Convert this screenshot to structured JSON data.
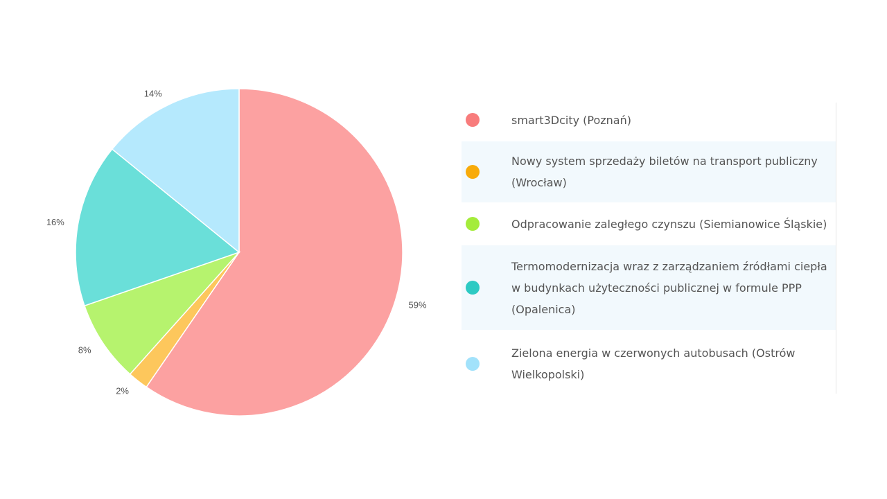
{
  "chart_data": {
    "type": "pie",
    "start_angle": "12 o'clock",
    "direction": "clockwise",
    "slices": [
      {
        "label": "smart3Dcity (Poznań)",
        "value": 59,
        "value_label": "59%",
        "color": "#fca1a1"
      },
      {
        "label": "Nowy system sprzedaży biletów na transport publiczny (Wrocław)",
        "value": 2,
        "value_label": "2%",
        "color": "#fdc75c"
      },
      {
        "label": "Odpracowanie zaległego czynszu (Siemianowice Śląskie)",
        "value": 8,
        "value_label": "8%",
        "color": "#b6f36e"
      },
      {
        "label": "Termomodernizacja wraz z zarządzaniem źródłami ciepła w budynkach użyteczności publicznej w formule PPP (Opalenica)",
        "value": 16,
        "value_label": "16%",
        "color": "#6adfd9"
      },
      {
        "label": "Zielona energia w czerwonych autobusach (Ostrów Wielkopolski)",
        "value": 14,
        "value_label": "14%",
        "color": "#b5e9fd"
      }
    ],
    "legend": {
      "position": "right",
      "items": [
        {
          "label": "smart3Dcity (Poznań)",
          "color": "#f87c7c"
        },
        {
          "label": "Nowy system sprzedaży biletów na transport publiczny (Wrocław)",
          "color": "#f8ab0a"
        },
        {
          "label": "Odpracowanie zaległego czynszu (Siemianowice Śląskie)",
          "color": "#a4ec3b"
        },
        {
          "label": "Termomodernizacja wraz z zarządzaniem źródłami ciepła w budynkach użyteczności publicznej w formule PPP (Opalenica)",
          "color": "#2dcac3"
        },
        {
          "label": "Zielona energia w czerwonych autobusach (Ostrów Wielkopolski)",
          "color": "#a2e2fb"
        }
      ]
    }
  }
}
